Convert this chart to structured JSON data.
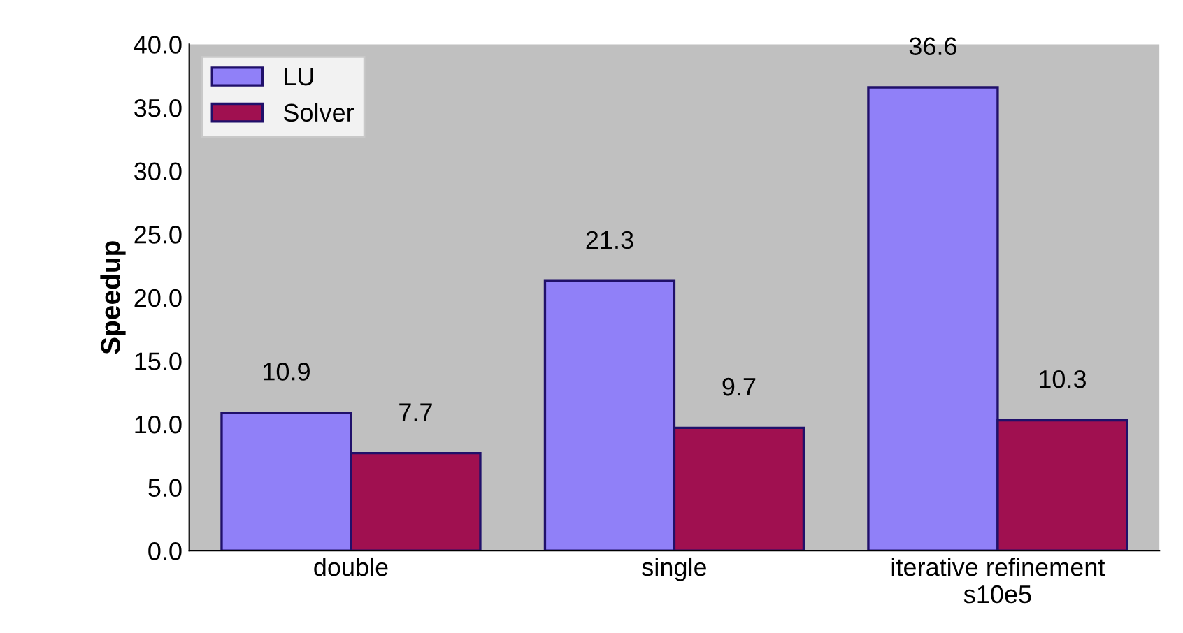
{
  "chart_data": {
    "type": "bar",
    "ylabel": "Speedup",
    "categories": [
      "double",
      "single",
      "iterative refinement\ns10e5"
    ],
    "series": [
      {
        "name": "LU",
        "color": "#9080f8",
        "values": [
          10.9,
          21.3,
          36.6
        ]
      },
      {
        "name": "Solver",
        "color": "#a01050",
        "values": [
          7.7,
          9.7,
          10.3
        ]
      }
    ],
    "ylim": [
      0,
      40
    ],
    "yticks": [
      {
        "value": 0,
        "label": "0.0"
      },
      {
        "value": 5,
        "label": "5.0"
      },
      {
        "value": 10,
        "label": "10.0"
      },
      {
        "value": 15,
        "label": "15.0"
      },
      {
        "value": 20,
        "label": "20.0"
      },
      {
        "value": 25,
        "label": "25.0"
      },
      {
        "value": 30,
        "label": "30.0"
      },
      {
        "value": 35,
        "label": "35.0"
      },
      {
        "value": 40,
        "label": "40.0"
      }
    ],
    "data_labels": true,
    "legend": "top left"
  }
}
